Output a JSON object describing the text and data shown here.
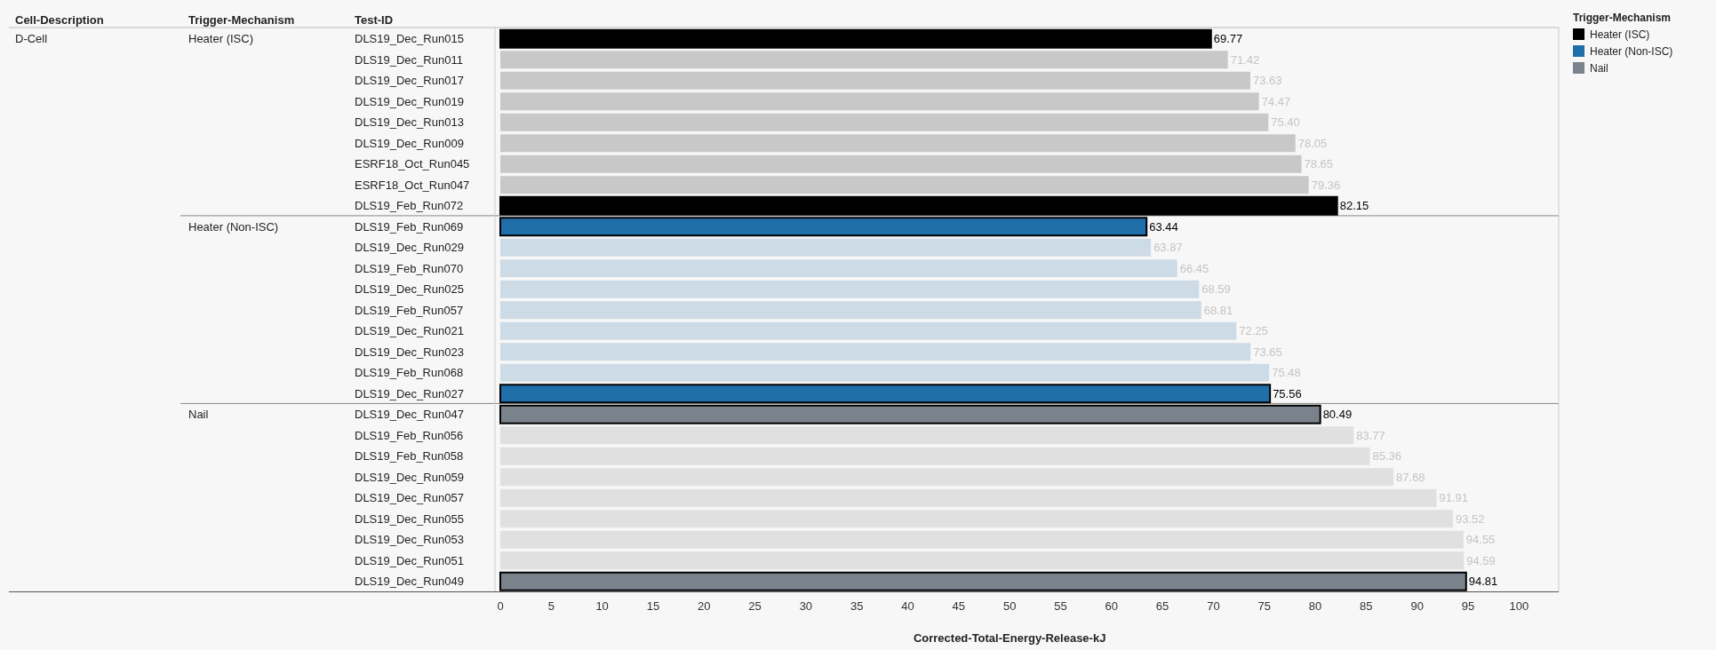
{
  "chart_data": {
    "type": "bar",
    "orientation": "horizontal",
    "xlabel": "Corrected-Total-Energy-Release-kJ",
    "legend_title": "Trigger-Mechanism",
    "legend": "top right",
    "annotations": [
      "Cell-Description",
      "Trigger-Mechanism",
      "Test-ID",
      "D-Cell"
    ],
    "categories": [
      "DLS19_Dec_Run015",
      "DLS19_Dec_Run011",
      "DLS19_Dec_Run017",
      "DLS19_Dec_Run019",
      "DLS19_Dec_Run013",
      "DLS19_Dec_Run009",
      "ESRF18_Oct_Run045",
      "ESRF18_Oct_Run047",
      "DLS19_Feb_Run072",
      "DLS19_Feb_Run069",
      "DLS19_Dec_Run029",
      "DLS19_Feb_Run070",
      "DLS19_Dec_Run025",
      "DLS19_Feb_Run057",
      "DLS19_Dec_Run021",
      "DLS19_Dec_Run023",
      "DLS19_Feb_Run068",
      "DLS19_Dec_Run027",
      "DLS19_Dec_Run047",
      "DLS19_Feb_Run056",
      "DLS19_Feb_Run058",
      "DLS19_Dec_Run059",
      "DLS19_Dec_Run057",
      "DLS19_Dec_Run055",
      "DLS19_Dec_Run053",
      "DLS19_Dec_Run051",
      "DLS19_Dec_Run049"
    ],
    "series": [
      {
        "name": "Heater (ISC)",
        "color": "#000000",
        "colors": [
          "#000000",
          "#c8c8c8",
          "#c8c8c8",
          "#c8c8c8",
          "#c8c8c8",
          "#c8c8c8",
          "#c8c8c8",
          "#c8c8c8",
          "#000000",
          null,
          null,
          null,
          null,
          null,
          null,
          null,
          null,
          null,
          null,
          null,
          null,
          null,
          null,
          null,
          null,
          null,
          null
        ],
        "values": [
          69.77,
          71.42,
          73.63,
          74.47,
          75.4,
          78.05,
          78.65,
          79.36,
          82.15,
          null,
          null,
          null,
          null,
          null,
          null,
          null,
          null,
          null,
          null,
          null,
          null,
          null,
          null,
          null,
          null,
          null,
          null
        ],
        "value_labels": [
          "69.77",
          "71.42",
          "73.63",
          "74.47",
          "75.40",
          "78.05",
          "78.65",
          "79.36",
          "82.15",
          null,
          null,
          null,
          null,
          null,
          null,
          null,
          null,
          null,
          null,
          null,
          null,
          null,
          null,
          null,
          null,
          null,
          null
        ]
      },
      {
        "name": "Heater (Non-ISC)",
        "color": "#1f6eaa",
        "colors": [
          null,
          null,
          null,
          null,
          null,
          null,
          null,
          null,
          null,
          "#1f6eaa",
          "#cddbe6",
          "#cddbe6",
          "#cddbe6",
          "#cddbe6",
          "#cddbe6",
          "#cddbe6",
          "#cddbe6",
          "#1f6eaa",
          null,
          null,
          null,
          null,
          null,
          null,
          null,
          null,
          null
        ],
        "values": [
          null,
          null,
          null,
          null,
          null,
          null,
          null,
          null,
          null,
          63.44,
          63.87,
          66.45,
          68.59,
          68.81,
          72.25,
          73.65,
          75.48,
          75.56,
          null,
          null,
          null,
          null,
          null,
          null,
          null,
          null,
          null
        ],
        "value_labels": [
          null,
          null,
          null,
          null,
          null,
          null,
          null,
          null,
          null,
          "63.44",
          "63.87",
          "66.45",
          "68.59",
          "68.81",
          "72.25",
          "73.65",
          "75.48",
          "75.56",
          null,
          null,
          null,
          null,
          null,
          null,
          null,
          null,
          null
        ]
      },
      {
        "name": "Nail",
        "color": "#7a828c",
        "colors": [
          null,
          null,
          null,
          null,
          null,
          null,
          null,
          null,
          null,
          null,
          null,
          null,
          null,
          null,
          null,
          null,
          null,
          null,
          "#7a828c",
          "#e0e0e0",
          "#e0e0e0",
          "#e0e0e0",
          "#e0e0e0",
          "#e0e0e0",
          "#e0e0e0",
          "#e0e0e0",
          "#7a828c"
        ],
        "values": [
          null,
          null,
          null,
          null,
          null,
          null,
          null,
          null,
          null,
          null,
          null,
          null,
          null,
          null,
          null,
          null,
          null,
          null,
          80.49,
          83.77,
          85.36,
          87.68,
          91.91,
          93.52,
          94.55,
          94.59,
          94.81
        ],
        "value_labels": [
          null,
          null,
          null,
          null,
          null,
          null,
          null,
          null,
          null,
          null,
          null,
          null,
          null,
          null,
          null,
          null,
          null,
          null,
          "80.49",
          "83.77",
          "85.36",
          "87.68",
          "91.91",
          "93.52",
          "94.55",
          "94.59",
          "94.81"
        ]
      }
    ],
    "xlim": [
      0,
      103.9
    ],
    "xticks": [
      0,
      5,
      10,
      15,
      20,
      25,
      30,
      35,
      40,
      45,
      50,
      55,
      60,
      65,
      70,
      75,
      80,
      85,
      90,
      95,
      100
    ]
  }
}
